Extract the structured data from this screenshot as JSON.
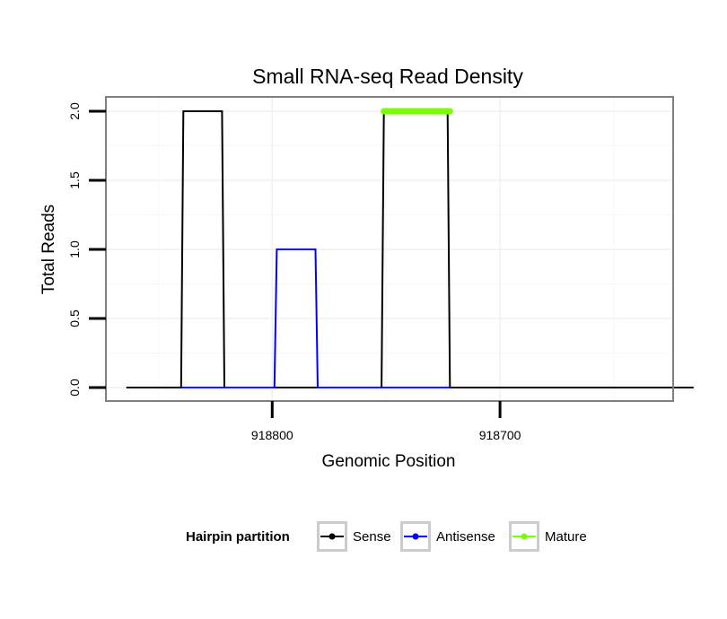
{
  "chart_data": {
    "type": "line",
    "title": "Small RNA-seq Read Density",
    "xlabel": "Genomic Position",
    "ylabel": "Total Reads",
    "x_reversed": true,
    "xlim": [
      918624,
      918873
    ],
    "ylim": [
      0,
      2.03
    ],
    "x_ticks": [
      918800,
      918700
    ],
    "x_tick_labels": [
      "918800",
      "918700"
    ],
    "y_ticks": [
      0,
      0.5,
      1,
      1.5,
      2
    ],
    "y_tick_labels": [
      "0.0",
      "0.5",
      "1.0",
      "1.5",
      "2.0"
    ],
    "series": [
      {
        "name": "Sense",
        "color": "#000000",
        "x": [
          918864,
          918840,
          918839,
          918822,
          918821,
          918752,
          918751,
          918723,
          918722,
          918615
        ],
        "y": [
          0,
          0,
          2,
          2,
          0,
          0,
          2,
          2,
          0,
          0
        ]
      },
      {
        "name": "Antisense",
        "color": "#0000ff",
        "x": [
          918840,
          918799,
          918798,
          918781,
          918780,
          918752,
          918751,
          918722
        ],
        "y": [
          0,
          0,
          1,
          1,
          0,
          0,
          0,
          0
        ]
      },
      {
        "name": "Mature",
        "color": "#7cfc00",
        "x": [
          918751,
          918722
        ],
        "y": [
          2,
          2
        ]
      }
    ],
    "legend": {
      "title": "Hairpin partition",
      "position": "bottom",
      "entries": [
        "Sense",
        "Antisense",
        "Mature"
      ]
    }
  }
}
